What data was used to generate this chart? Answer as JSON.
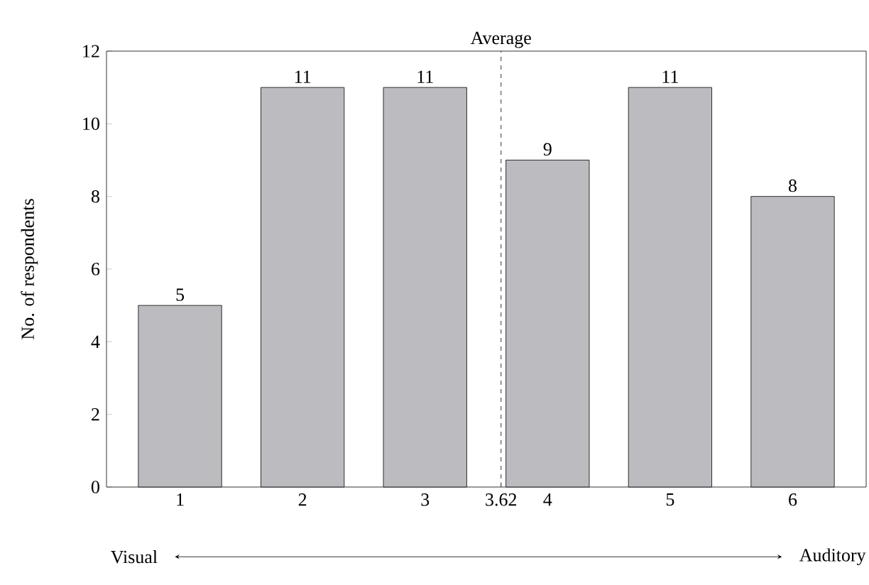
{
  "chart_data": {
    "type": "bar",
    "ylabel": "No. of respondents",
    "x": [
      1,
      2,
      3,
      4,
      5,
      6
    ],
    "values": [
      5,
      11,
      11,
      9,
      11,
      8
    ],
    "color": "#bcbcc0",
    "xlim": [
      0.4,
      6.6
    ],
    "xticks": [
      1,
      2,
      3,
      {
        "value": 3.62,
        "label": "3.62"
      },
      4,
      5,
      6
    ],
    "ylim": [
      0,
      12
    ],
    "yticks": [
      0,
      2,
      4,
      6,
      8,
      10,
      12
    ],
    "data_labels": true,
    "ref_lines": [
      {
        "axis": "x",
        "value": 3.62,
        "label": "Average",
        "line_style": "dashed",
        "color": "#000000"
      }
    ],
    "annotations": [
      "Visual",
      "Auditory"
    ]
  }
}
